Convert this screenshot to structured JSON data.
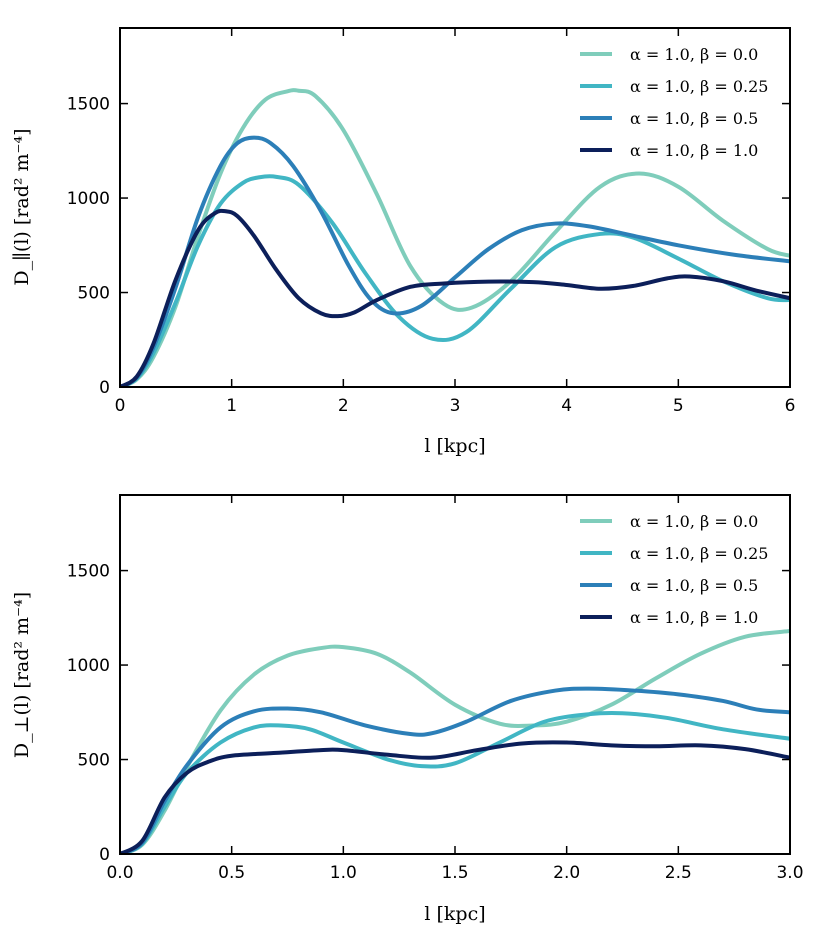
{
  "chart_data": [
    {
      "type": "line",
      "xlabel": "l [kpc]",
      "ylabel": "D_∥(l) [rad² m⁻⁴]",
      "xlim": [
        0,
        6
      ],
      "ylim": [
        0,
        1900
      ],
      "x_ticks": [
        "0",
        "1",
        "2",
        "3",
        "4",
        "5",
        "6"
      ],
      "y_ticks": [
        "0",
        "500",
        "1000",
        "1500"
      ],
      "x_tick_values": [
        0,
        1,
        2,
        3,
        4,
        5,
        6
      ],
      "y_tick_values": [
        0,
        500,
        1000,
        1500
      ],
      "legend_position": "top-right",
      "series": [
        {
          "name": "α = 1.0, β = 0.0",
          "color": "#7fcdbb",
          "x": [
            0,
            0.15,
            0.3,
            0.5,
            0.7,
            0.9,
            1.1,
            1.3,
            1.5,
            1.6,
            1.75,
            2.0,
            2.3,
            2.6,
            2.9,
            3.15,
            3.5,
            3.9,
            4.3,
            4.65,
            5.0,
            5.4,
            5.8,
            6.0
          ],
          "values": [
            0,
            40,
            160,
            430,
            800,
            1130,
            1370,
            1520,
            1565,
            1568,
            1540,
            1360,
            1020,
            640,
            440,
            420,
            560,
            820,
            1060,
            1130,
            1060,
            880,
            730,
            695
          ]
        },
        {
          "name": "α = 1.0, β = 0.25",
          "color": "#41b6c4",
          "x": [
            0,
            0.15,
            0.3,
            0.5,
            0.7,
            0.9,
            1.1,
            1.25,
            1.4,
            1.6,
            1.9,
            2.2,
            2.5,
            2.8,
            3.1,
            3.5,
            3.9,
            4.3,
            4.6,
            5.0,
            5.4,
            5.8,
            6.0
          ],
          "values": [
            0,
            45,
            180,
            450,
            750,
            970,
            1080,
            1110,
            1112,
            1070,
            870,
            600,
            370,
            255,
            290,
            520,
            740,
            810,
            790,
            680,
            560,
            470,
            460
          ]
        },
        {
          "name": "α = 1.0, β = 0.5",
          "color": "#2c7fb8",
          "x": [
            0,
            0.15,
            0.3,
            0.5,
            0.7,
            0.9,
            1.05,
            1.2,
            1.35,
            1.55,
            1.8,
            2.05,
            2.25,
            2.45,
            2.7,
            3.0,
            3.3,
            3.6,
            3.9,
            4.2,
            4.6,
            5.0,
            5.5,
            6.0
          ],
          "values": [
            0,
            50,
            210,
            530,
            900,
            1170,
            1290,
            1320,
            1290,
            1170,
            930,
            640,
            460,
            390,
            430,
            580,
            730,
            830,
            865,
            850,
            800,
            750,
            700,
            665
          ]
        },
        {
          "name": "α = 1.0, β = 1.0",
          "color": "#0c1f5a",
          "x": [
            0,
            0.15,
            0.3,
            0.5,
            0.7,
            0.85,
            0.95,
            1.05,
            1.2,
            1.4,
            1.6,
            1.8,
            1.95,
            2.1,
            2.3,
            2.6,
            2.9,
            3.3,
            3.7,
            4.0,
            4.3,
            4.6,
            4.9,
            5.1,
            5.4,
            5.7,
            6.0
          ],
          "values": [
            0,
            55,
            230,
            570,
            830,
            920,
            930,
            905,
            800,
            620,
            470,
            390,
            375,
            395,
            460,
            530,
            548,
            558,
            555,
            540,
            520,
            535,
            575,
            585,
            560,
            510,
            470
          ]
        }
      ]
    },
    {
      "type": "line",
      "xlabel": "l [kpc]",
      "ylabel": "D_⊥(l) [rad² m⁻⁴]",
      "xlim": [
        0,
        3
      ],
      "ylim": [
        0,
        1900
      ],
      "x_ticks": [
        "0.0",
        "0.5",
        "1.0",
        "1.5",
        "2.0",
        "2.5",
        "3.0"
      ],
      "y_ticks": [
        "0",
        "500",
        "1000",
        "1500"
      ],
      "x_tick_values": [
        0,
        0.5,
        1,
        1.5,
        2,
        2.5,
        3
      ],
      "y_tick_values": [
        0,
        500,
        1000,
        1500
      ],
      "legend_position": "top-right",
      "series": [
        {
          "name": "α = 1.0, β = 0.0",
          "color": "#7fcdbb",
          "x": [
            0,
            0.1,
            0.2,
            0.3,
            0.45,
            0.6,
            0.75,
            0.9,
            1.0,
            1.15,
            1.3,
            1.5,
            1.7,
            1.85,
            2.0,
            2.2,
            2.4,
            2.6,
            2.8,
            3.0
          ],
          "values": [
            0,
            50,
            230,
            460,
            760,
            950,
            1050,
            1090,
            1095,
            1060,
            960,
            790,
            690,
            680,
            700,
            790,
            930,
            1060,
            1150,
            1180
          ]
        },
        {
          "name": "α = 1.0, β = 0.25",
          "color": "#41b6c4",
          "x": [
            0,
            0.1,
            0.2,
            0.3,
            0.45,
            0.6,
            0.72,
            0.85,
            1.0,
            1.2,
            1.35,
            1.5,
            1.7,
            1.9,
            2.1,
            2.25,
            2.45,
            2.7,
            3.0
          ],
          "values": [
            0,
            55,
            250,
            430,
            590,
            670,
            680,
            660,
            590,
            500,
            465,
            480,
            590,
            700,
            740,
            745,
            720,
            660,
            610
          ]
        },
        {
          "name": "α = 1.0, β = 0.5",
          "color": "#2c7fb8",
          "x": [
            0,
            0.1,
            0.2,
            0.3,
            0.45,
            0.6,
            0.75,
            0.9,
            1.1,
            1.3,
            1.4,
            1.55,
            1.75,
            1.95,
            2.1,
            2.3,
            2.5,
            2.7,
            2.85,
            3.0
          ],
          "values": [
            0,
            60,
            280,
            470,
            670,
            755,
            770,
            750,
            680,
            635,
            640,
            700,
            810,
            865,
            875,
            865,
            845,
            810,
            765,
            750
          ]
        },
        {
          "name": "α = 1.0, β = 1.0",
          "color": "#0c1f5a",
          "x": [
            0,
            0.1,
            0.2,
            0.3,
            0.4,
            0.5,
            0.7,
            0.9,
            1.0,
            1.2,
            1.4,
            1.6,
            1.8,
            2.0,
            2.2,
            2.4,
            2.6,
            2.8,
            3.0
          ],
          "values": [
            0,
            70,
            300,
            430,
            490,
            520,
            535,
            550,
            550,
            525,
            510,
            550,
            585,
            590,
            575,
            570,
            575,
            555,
            510
          ]
        }
      ]
    }
  ]
}
